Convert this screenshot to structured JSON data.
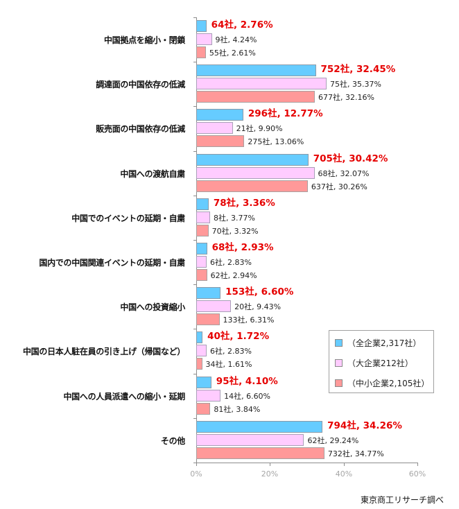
{
  "chart_data": {
    "type": "bar",
    "orientation": "horizontal",
    "title": "",
    "xlabel": "",
    "ylabel": "",
    "xlim": [
      0,
      60
    ],
    "x_ticks": [
      "0%",
      "20%",
      "40%",
      "60%"
    ],
    "grid": false,
    "legend_position": "right-inside",
    "categories": [
      "中国拠点を縮小・閉鎖",
      "調達面の中国依存の低減",
      "販売面の中国依存の低減",
      "中国への渡航自粛",
      "中国でのイベントの延期・自粛",
      "国内での中国関連イベントの延期・自粛",
      "中国への投資縮小",
      "中国の日本人駐在員の引き上げ（帰国など）",
      "中国への人員派遣への縮小・延期",
      "その他"
    ],
    "series": [
      {
        "name": "（全企業2,317社）",
        "color": "#66ccff",
        "counts": [
          64,
          752,
          296,
          705,
          78,
          68,
          153,
          40,
          95,
          794
        ],
        "values": [
          2.76,
          32.45,
          12.77,
          30.42,
          3.36,
          2.93,
          6.6,
          1.72,
          4.1,
          34.26
        ],
        "labels": [
          "64社, 2.76%",
          "752社, 32.45%",
          "296社, 12.77%",
          "705社, 30.42%",
          "78社, 3.36%",
          "68社, 2.93%",
          "153社, 6.60%",
          "40社, 1.72%",
          "95社, 4.10%",
          "794社, 34.26%"
        ]
      },
      {
        "name": "（大企業212社）",
        "color": "#ffccff",
        "counts": [
          9,
          75,
          21,
          68,
          8,
          6,
          20,
          6,
          14,
          62
        ],
        "values": [
          4.24,
          35.37,
          9.9,
          32.07,
          3.77,
          2.83,
          9.43,
          2.83,
          6.6,
          29.24
        ],
        "labels": [
          "9社, 4.24%",
          "75社, 35.37%",
          "21社, 9.90%",
          "68社, 32.07%",
          "8社, 3.77%",
          "6社, 2.83%",
          "20社, 9.43%",
          "6社, 2.83%",
          "14社, 6.60%",
          "62社, 29.24%"
        ]
      },
      {
        "name": "（中小企業2,105社）",
        "color": "#ff9999",
        "counts": [
          55,
          677,
          275,
          637,
          70,
          62,
          133,
          34,
          81,
          732
        ],
        "values": [
          2.61,
          32.16,
          13.06,
          30.26,
          3.32,
          2.94,
          6.31,
          1.61,
          3.84,
          34.77
        ],
        "labels": [
          "55社, 2.61%",
          "677社, 32.16%",
          "275社, 13.06%",
          "637社, 30.26%",
          "70社, 3.32%",
          "62社, 2.94%",
          "133社, 6.31%",
          "34社, 1.61%",
          "81社, 3.84%",
          "732社, 34.77%"
        ]
      }
    ],
    "source": "東京商工リサーチ調べ"
  }
}
